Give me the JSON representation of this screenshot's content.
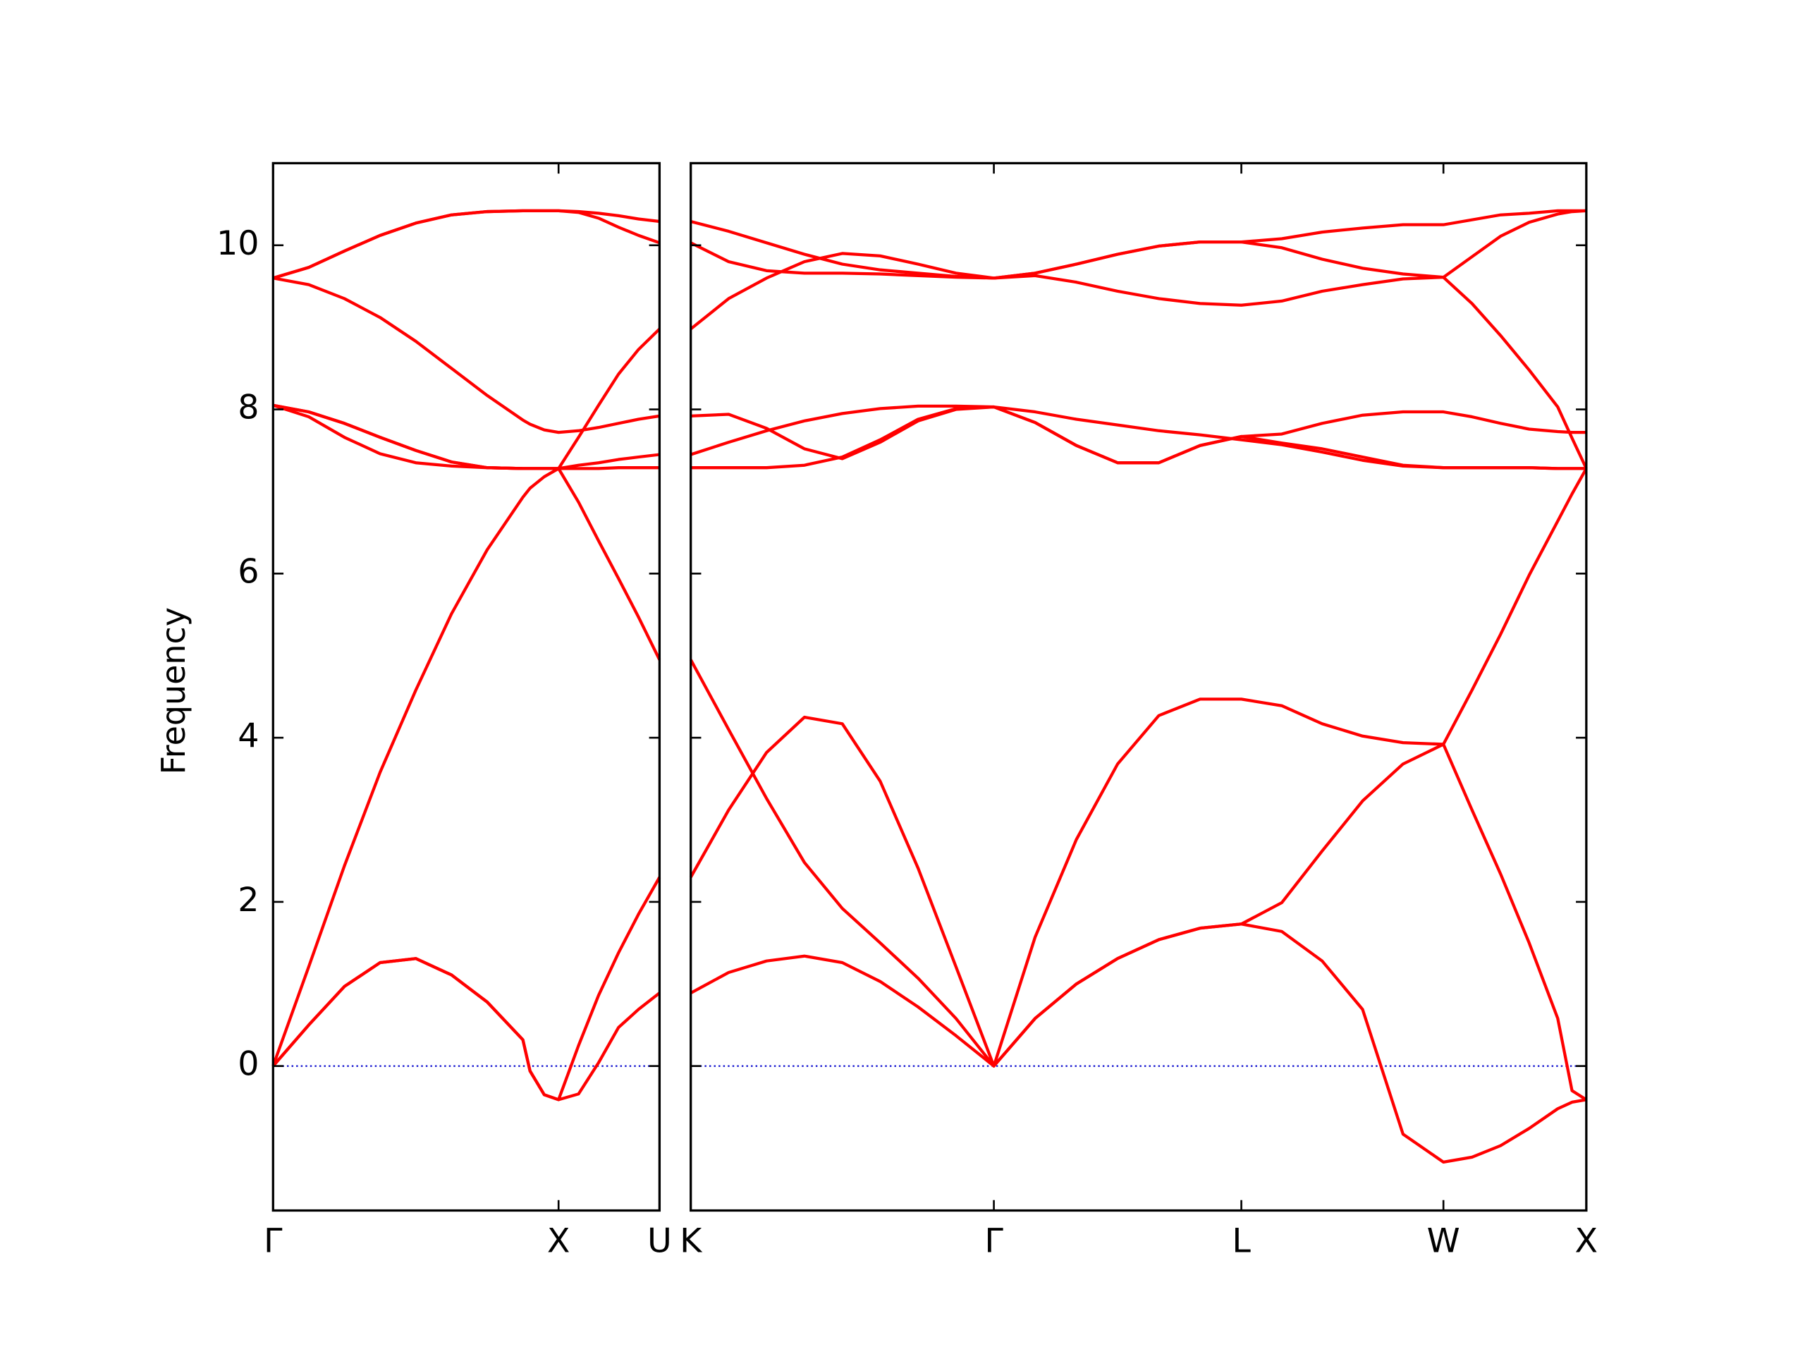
{
  "chart_data": [
    {
      "type": "line",
      "ylabel": "Frequency",
      "x": [
        0,
        0.125,
        0.25,
        0.375,
        0.5,
        0.625,
        0.75,
        0.875,
        0.9,
        0.95,
        1,
        1.07,
        1.14,
        1.21,
        1.28,
        1.3536
      ],
      "xlim": [
        0,
        1.3536
      ],
      "xticks": [
        {
          "value": 0,
          "label": "Γ"
        },
        {
          "value": 1,
          "label": "X"
        },
        {
          "value": 1.3536,
          "label": "U"
        }
      ],
      "ylim": [
        -1.76,
        11
      ],
      "yticks": [
        0,
        2,
        4,
        6,
        8,
        10
      ],
      "ytick_labels": true,
      "hline": 0,
      "hline_color": "#0000cc",
      "series": [
        {
          "color": "#ff0000",
          "values": [
            0,
            0.5,
            0.97,
            1.26,
            1.31,
            1.11,
            0.78,
            0.32,
            -0.06,
            -0.35,
            -0.41,
            -0.34,
            0.04,
            0.47,
            0.69,
            0.89
          ]
        },
        {
          "color": "#ff0000",
          "values": [
            0,
            0.5,
            0.97,
            1.26,
            1.31,
            1.11,
            0.78,
            0.32,
            -0.06,
            -0.35,
            -0.41,
            0.25,
            0.86,
            1.38,
            1.85,
            2.3
          ]
        },
        {
          "color": "#ff0000",
          "values": [
            0,
            1.21,
            2.44,
            3.58,
            4.58,
            5.51,
            6.29,
            6.93,
            7.04,
            7.18,
            7.28,
            7.66,
            8.05,
            8.43,
            8.73,
            8.98
          ]
        },
        {
          "color": "#ff0000",
          "values": [
            8.05,
            7.91,
            7.66,
            7.46,
            7.35,
            7.31,
            7.29,
            7.28,
            7.28,
            7.28,
            7.28,
            6.87,
            6.4,
            5.94,
            5.47,
            4.95
          ]
        },
        {
          "color": "#ff0000",
          "values": [
            8.05,
            7.97,
            7.83,
            7.66,
            7.5,
            7.36,
            7.29,
            7.28,
            7.28,
            7.28,
            7.28,
            7.28,
            7.28,
            7.29,
            7.29,
            7.29
          ]
        },
        {
          "color": "#ff0000",
          "values": [
            8.05,
            7.97,
            7.83,
            7.66,
            7.5,
            7.36,
            7.29,
            7.28,
            7.28,
            7.28,
            7.28,
            7.32,
            7.35,
            7.39,
            7.42,
            7.45
          ]
        },
        {
          "color": "#ff0000",
          "values": [
            9.6,
            9.52,
            9.35,
            9.12,
            8.83,
            8.5,
            8.17,
            7.87,
            7.82,
            7.75,
            7.72,
            7.74,
            7.78,
            7.83,
            7.88,
            7.92
          ]
        },
        {
          "color": "#ff0000",
          "values": [
            9.6,
            9.73,
            9.93,
            10.12,
            10.27,
            10.37,
            10.41,
            10.42,
            10.42,
            10.42,
            10.42,
            10.41,
            10.39,
            10.36,
            10.32,
            10.29
          ]
        },
        {
          "color": "#ff0000",
          "values": [
            9.6,
            9.73,
            9.93,
            10.12,
            10.27,
            10.37,
            10.41,
            10.42,
            10.42,
            10.42,
            10.42,
            10.4,
            10.33,
            10.22,
            10.12,
            10.03
          ]
        }
      ]
    },
    {
      "type": "line",
      "x": [
        1.3536,
        1.4862,
        1.6188,
        1.7513,
        1.8839,
        2.0165,
        2.1491,
        2.2816,
        2.4142,
        2.5585,
        2.7029,
        2.8472,
        2.9915,
        3.1359,
        3.2802,
        3.4216,
        3.563,
        3.7045,
        3.8459,
        3.9873,
        4.0873,
        4.1873,
        4.2873,
        4.3873,
        4.4373,
        4.4873
      ],
      "xlim": [
        1.3536,
        4.4873
      ],
      "xticks": [
        {
          "value": 1.3536,
          "label": "K"
        },
        {
          "value": 2.4142,
          "label": "Γ"
        },
        {
          "value": 3.2802,
          "label": "L"
        },
        {
          "value": 3.9873,
          "label": "W"
        },
        {
          "value": 4.4873,
          "label": "X"
        }
      ],
      "ylim": [
        -1.76,
        11
      ],
      "yticks": [
        0,
        2,
        4,
        6,
        8,
        10
      ],
      "ytick_labels": false,
      "hline": 0,
      "hline_color": "#0000cc",
      "series": [
        {
          "color": "#ff0000",
          "values": [
            0.89,
            1.14,
            1.28,
            1.34,
            1.26,
            1.03,
            0.72,
            0.37,
            0,
            0.58,
            1.0,
            1.31,
            1.54,
            1.68,
            1.73,
            1.99,
            2.62,
            3.23,
            3.68,
            3.92,
            4.58,
            5.26,
            5.98,
            6.64,
            6.97,
            7.28
          ]
        },
        {
          "color": "#ff0000",
          "values": [
            4.95,
            4.1,
            3.26,
            2.48,
            1.92,
            1.5,
            1.07,
            0.58,
            0,
            0.58,
            1.0,
            1.31,
            1.54,
            1.68,
            1.73,
            1.64,
            1.28,
            0.69,
            -0.83,
            -1.17,
            -1.11,
            -0.97,
            -0.76,
            -0.52,
            -0.44,
            -0.41
          ]
        },
        {
          "color": "#ff0000",
          "values": [
            2.3,
            3.12,
            3.82,
            4.25,
            4.17,
            3.47,
            2.41,
            1.21,
            0,
            1.57,
            2.76,
            3.68,
            4.27,
            4.47,
            4.47,
            4.39,
            4.17,
            4.02,
            3.94,
            3.92,
            3.12,
            2.34,
            1.5,
            0.58,
            -0.3,
            -0.41
          ]
        },
        {
          "color": "#ff0000",
          "values": [
            7.29,
            7.29,
            7.29,
            7.32,
            7.42,
            7.63,
            7.88,
            8.01,
            8.03,
            7.84,
            7.56,
            7.35,
            7.35,
            7.56,
            7.67,
            7.7,
            7.83,
            7.93,
            7.97,
            7.97,
            7.91,
            7.83,
            7.76,
            7.73,
            7.72,
            7.72
          ]
        },
        {
          "color": "#ff0000",
          "values": [
            7.92,
            7.94,
            7.77,
            7.52,
            7.4,
            7.6,
            7.86,
            8.0,
            8.03,
            7.84,
            7.56,
            7.35,
            7.35,
            7.56,
            7.67,
            7.59,
            7.52,
            7.42,
            7.32,
            7.29,
            7.29,
            7.29,
            7.29,
            7.28,
            7.28,
            7.28
          ]
        },
        {
          "color": "#ff0000",
          "values": [
            7.45,
            7.6,
            7.74,
            7.86,
            7.95,
            8.01,
            8.04,
            8.04,
            8.03,
            7.97,
            7.88,
            7.81,
            7.74,
            7.69,
            7.63,
            7.57,
            7.48,
            7.38,
            7.31,
            7.29,
            7.29,
            7.29,
            7.29,
            7.28,
            7.28,
            7.28
          ]
        },
        {
          "color": "#ff0000",
          "values": [
            8.98,
            9.35,
            9.6,
            9.8,
            9.9,
            9.87,
            9.77,
            9.66,
            9.6,
            9.66,
            9.77,
            9.89,
            9.99,
            10.04,
            10.04,
            10.08,
            10.16,
            10.21,
            10.25,
            10.25,
            10.31,
            10.37,
            10.39,
            10.42,
            10.42,
            10.42
          ]
        },
        {
          "color": "#ff0000",
          "values": [
            10.03,
            9.8,
            9.69,
            9.66,
            9.66,
            9.65,
            9.63,
            9.61,
            9.6,
            9.63,
            9.55,
            9.44,
            9.35,
            9.29,
            9.27,
            9.32,
            9.44,
            9.52,
            9.59,
            9.61,
            9.29,
            8.9,
            8.48,
            8.03,
            7.65,
            7.28
          ]
        },
        {
          "color": "#ff0000",
          "values": [
            10.29,
            10.17,
            10.03,
            9.89,
            9.77,
            9.7,
            9.66,
            9.62,
            9.6,
            9.66,
            9.77,
            9.89,
            9.99,
            10.04,
            10.04,
            9.97,
            9.83,
            9.72,
            9.65,
            9.61,
            9.86,
            10.11,
            10.28,
            10.38,
            10.41,
            10.42
          ]
        }
      ]
    }
  ]
}
